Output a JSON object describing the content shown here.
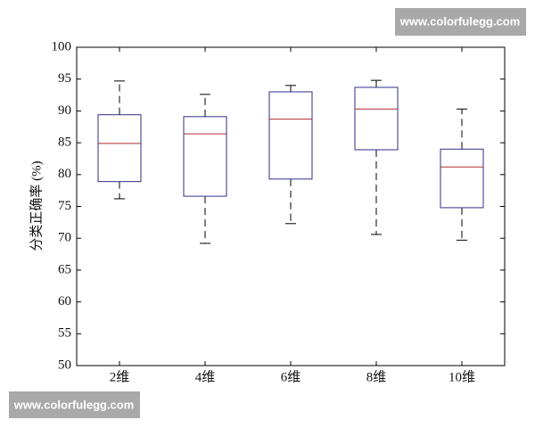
{
  "chart_data": {
    "type": "box",
    "ylabel": "分类正确率 (%)",
    "categories": [
      "2维",
      "4维",
      "6维",
      "8维",
      "10维"
    ],
    "whisker_low": [
      76.2,
      69.2,
      72.3,
      70.6,
      69.7
    ],
    "q1": [
      78.9,
      76.6,
      79.3,
      83.9,
      74.8
    ],
    "median": [
      84.9,
      86.4,
      88.7,
      90.3,
      81.2
    ],
    "q3": [
      89.4,
      89.1,
      93.0,
      93.7,
      84.0
    ],
    "whisker_high": [
      94.7,
      92.6,
      94.0,
      94.8,
      90.3
    ],
    "box_color": "#2e2e8a",
    "median_color": "#b02a2a",
    "whisker_color": "#000000",
    "ylim": [
      50,
      100
    ],
    "yticks": [
      50,
      55,
      60,
      65,
      70,
      75,
      80,
      85,
      90,
      95,
      100
    ],
    "grid": false
  },
  "watermarks": [
    "www.colorfulegg.com",
    "www.colorfulegg.com"
  ]
}
